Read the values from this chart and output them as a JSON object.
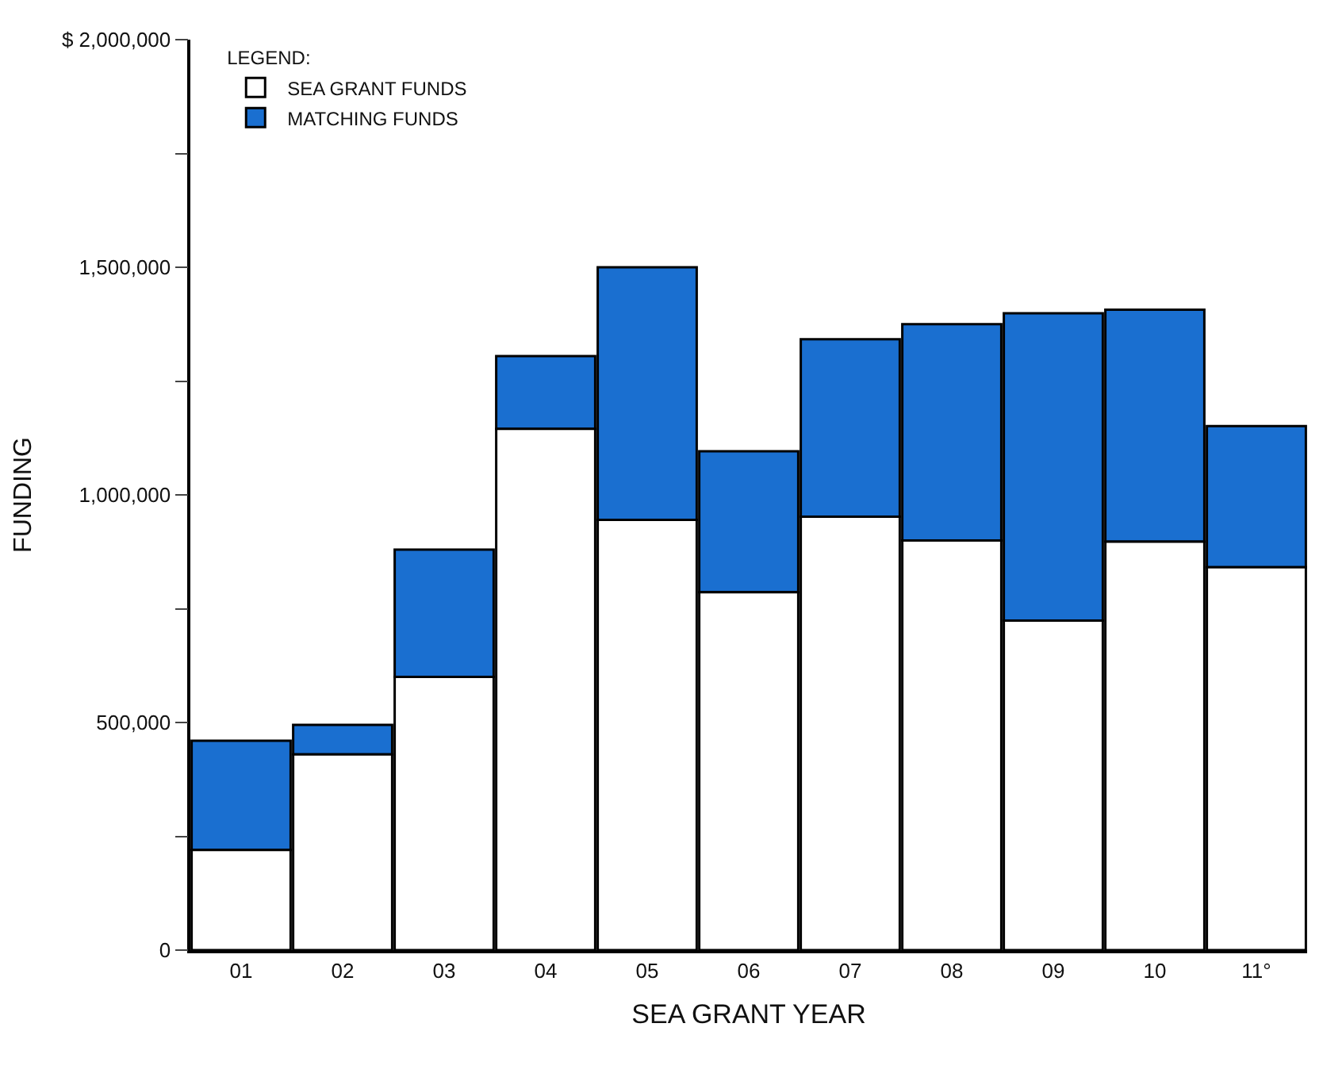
{
  "chart_data": {
    "type": "bar",
    "stacked": true,
    "xlabel": "SEA GRANT YEAR",
    "ylabel": "FUNDING",
    "legend_title": "LEGEND:",
    "categories": [
      "01",
      "02",
      "03",
      "04",
      "05",
      "06",
      "07",
      "08",
      "09",
      "10",
      "11°"
    ],
    "series": [
      {
        "name": "SEA GRANT FUNDS",
        "color": "#ffffff",
        "values": [
          220000,
          430000,
          600000,
          1145000,
          945000,
          786000,
          952000,
          900000,
          724000,
          897000,
          841000
        ]
      },
      {
        "name": "MATCHING FUNDS",
        "color": "#1a6fd0",
        "values": [
          240000,
          65000,
          280000,
          160000,
          555000,
          310000,
          390000,
          475000,
          675000,
          510000,
          310000
        ]
      }
    ],
    "ylim": [
      0,
      2000000
    ],
    "yticks": [
      0,
      {
        "value": 250000,
        "label": null
      },
      {
        "value": 500000,
        "label": "500,000"
      },
      {
        "value": 750000,
        "label": null
      },
      {
        "value": 1000000,
        "label": "1,000,000"
      },
      {
        "value": 1250000,
        "label": null
      },
      {
        "value": 1500000,
        "label": "1,500,000"
      },
      {
        "value": 1750000,
        "label": null
      },
      {
        "value": 2000000,
        "label": "$ 2,000,000"
      }
    ],
    "grid": false,
    "legend": "top left"
  }
}
